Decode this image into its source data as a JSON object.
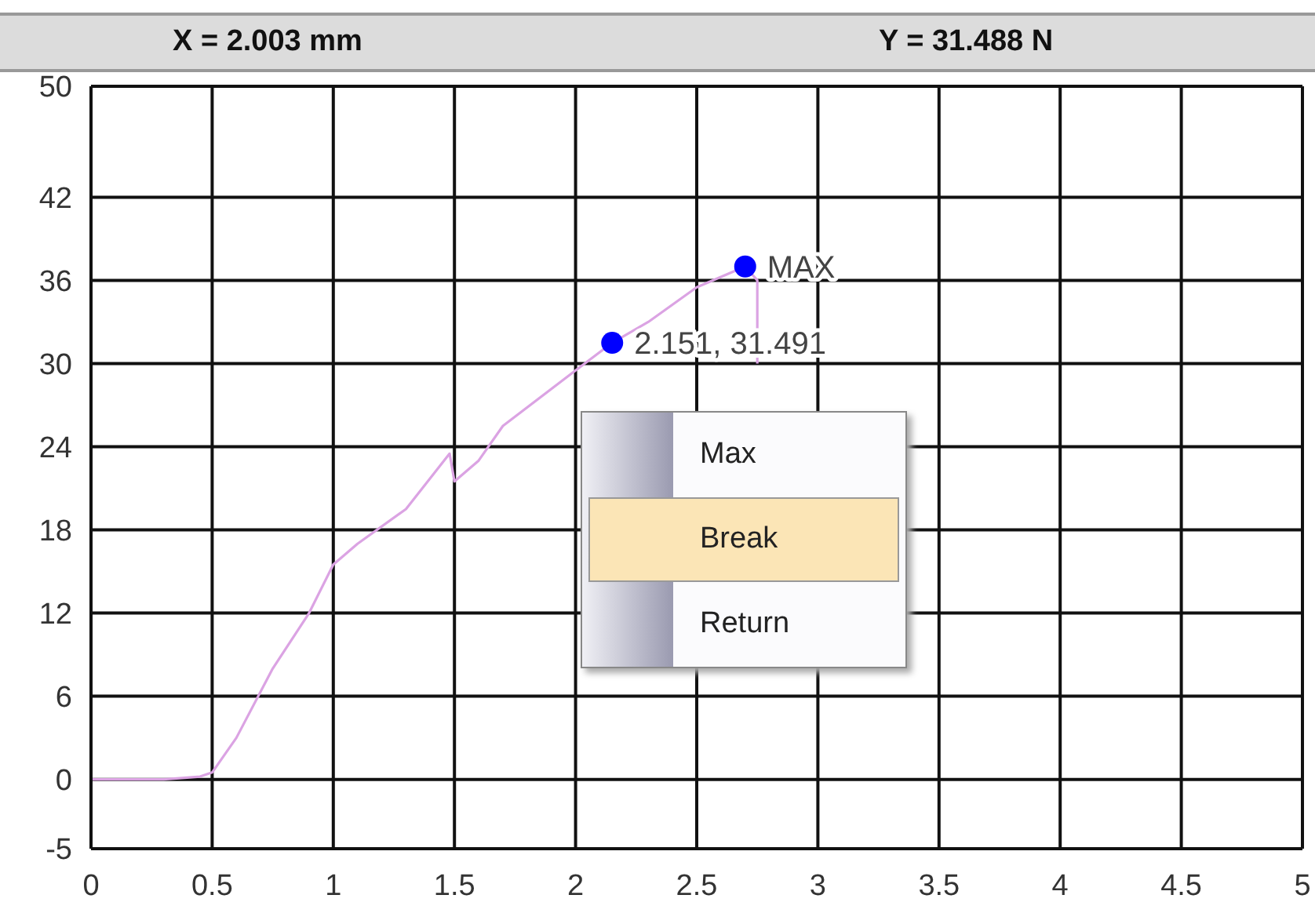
{
  "chart_data": {
    "type": "line",
    "title": "X = 2.003 mm",
    "subtitle": "Y = 31.488 N",
    "xlim": [
      0,
      5
    ],
    "xticks": [
      0,
      0.5,
      1,
      1.5,
      2,
      2.5,
      3,
      3.5,
      4,
      4.5,
      5
    ],
    "ylim": [
      -5,
      50
    ],
    "yticks": [
      -5,
      0,
      6,
      12,
      18,
      24,
      30,
      36,
      42,
      50
    ],
    "grid": true,
    "marker": "none",
    "line_style": "solid",
    "series": [
      {
        "color": "#dba3e3",
        "x": [
          0,
          0.3,
          0.45,
          0.5,
          0.6,
          0.75,
          0.9,
          1.0,
          1.1,
          1.3,
          1.48,
          1.5,
          1.6,
          1.7,
          2.0,
          2.151,
          2.3,
          2.5,
          2.7,
          2.75,
          2.75
        ],
        "values": [
          0,
          0,
          0.2,
          0.5,
          3,
          8,
          12,
          15.5,
          17,
          19.5,
          23.5,
          21.5,
          23,
          25.5,
          29.5,
          31.491,
          33,
          35.5,
          37,
          36,
          30
        ]
      },
      {
        "type": "scatter",
        "color": "#0000ff",
        "x": [
          2.151,
          2.7
        ],
        "values": [
          31.491,
          37
        ],
        "marker": "circle"
      }
    ],
    "annotations": [
      {
        "text": "MAX",
        "x": 2.7,
        "y": 37
      },
      {
        "text": "2.151, 31.491",
        "x": 2.151,
        "y": 31.491
      },
      "Max",
      "Break",
      "Return"
    ]
  }
}
